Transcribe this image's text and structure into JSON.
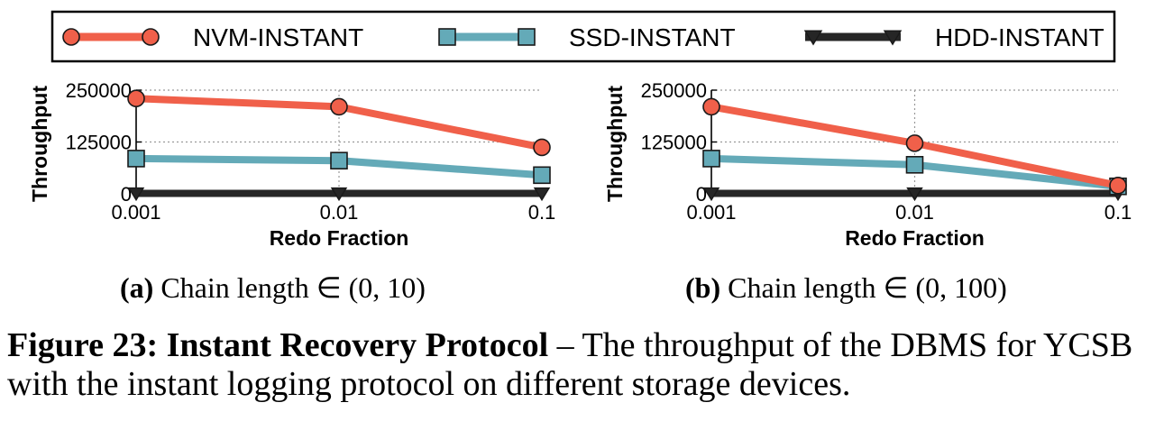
{
  "legend": {
    "items": [
      {
        "label": "NVM-INSTANT",
        "color": "#f0604a",
        "marker": "circle"
      },
      {
        "label": "SSD-INSTANT",
        "color": "#64aab8",
        "marker": "square"
      },
      {
        "label": "HDD-INSTANT",
        "color": "#262626",
        "marker": "triangle-down"
      }
    ]
  },
  "subcaptions": [
    {
      "letter": "(a)",
      "text": "Chain length ∈ (0, 10)"
    },
    {
      "letter": "(b)",
      "text": "Chain length ∈ (0, 100)"
    }
  ],
  "caption": {
    "label": "Figure 23: Instant Recovery Protocol",
    "text": "– The throughput of the DBMS for YCSB with the instant logging protocol on different storage devices."
  },
  "chart_data": [
    {
      "type": "line",
      "xlabel": "Redo Fraction",
      "ylabel": "Throughput",
      "x": [
        0.001,
        0.01,
        0.1
      ],
      "x_tick_labels": [
        "0.001",
        "0.01",
        "0.1"
      ],
      "xscale": "log",
      "ylim": [
        0,
        250000
      ],
      "y_ticks": [
        0,
        125000,
        250000
      ],
      "y_tick_labels": [
        "0",
        "125000",
        "250000"
      ],
      "grid": "horizontal dotted",
      "series": [
        {
          "name": "NVM-INSTANT",
          "values": [
            230000,
            210000,
            112000
          ]
        },
        {
          "name": "SSD-INSTANT",
          "values": [
            85000,
            80000,
            45000
          ]
        },
        {
          "name": "HDD-INSTANT",
          "values": [
            1000,
            1000,
            1000
          ]
        }
      ]
    },
    {
      "type": "line",
      "xlabel": "Redo Fraction",
      "ylabel": "Throughput",
      "x": [
        0.001,
        0.01,
        0.1
      ],
      "x_tick_labels": [
        "0.001",
        "0.01",
        "0.1"
      ],
      "xscale": "log",
      "ylim": [
        0,
        250000
      ],
      "y_ticks": [
        0,
        125000,
        250000
      ],
      "y_tick_labels": [
        "0",
        "125000",
        "250000"
      ],
      "grid": "horizontal dotted",
      "series": [
        {
          "name": "NVM-INSTANT",
          "values": [
            210000,
            122000,
            20000
          ]
        },
        {
          "name": "SSD-INSTANT",
          "values": [
            85000,
            70000,
            18000
          ]
        },
        {
          "name": "HDD-INSTANT",
          "values": [
            1000,
            1000,
            1000
          ]
        }
      ]
    }
  ]
}
